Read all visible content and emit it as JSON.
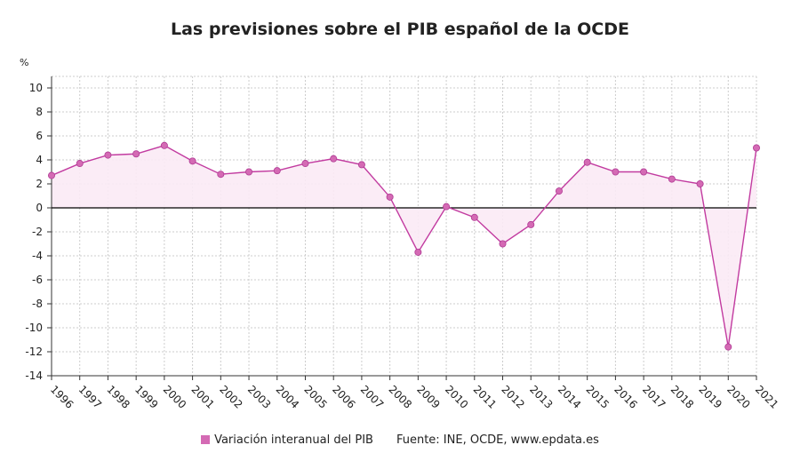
{
  "title": "Las previsiones sobre el PIB español de la OCDE",
  "legend": {
    "series_label": "Variación interanual del PIB",
    "source": "Fuente: INE, OCDE, www.epdata.es"
  },
  "colors": {
    "series": "#c23ba0",
    "marker": "#d46ab4",
    "fill": "#fbeaf5",
    "grid": "#cccccc",
    "zero_line": "#000000"
  },
  "chart_data": {
    "type": "line",
    "title": "Las previsiones sobre el PIB español de la OCDE",
    "xlabel": "",
    "ylabel": "%",
    "ylim": [
      -14,
      11
    ],
    "yticks": [
      10,
      8,
      6,
      4,
      2,
      0,
      -2,
      -4,
      -6,
      -8,
      -10,
      -12,
      -14
    ],
    "grid": true,
    "legend_position": "bottom",
    "x": [
      "1996",
      "1997",
      "1998",
      "1999",
      "2000",
      "2001",
      "2002",
      "2003",
      "2004",
      "2005",
      "2006",
      "2007",
      "2008",
      "2009",
      "2010",
      "2011",
      "2012",
      "2013",
      "2014",
      "2015",
      "2016",
      "2017",
      "2018",
      "2019",
      "2020",
      "2021"
    ],
    "series": [
      {
        "name": "Variación interanual del PIB",
        "values": [
          2.7,
          3.7,
          4.4,
          4.5,
          5.2,
          3.9,
          2.8,
          3.0,
          3.1,
          3.7,
          4.1,
          3.6,
          0.9,
          -3.7,
          0.1,
          -0.8,
          -3.0,
          -1.4,
          1.4,
          3.8,
          3.0,
          3.0,
          2.4,
          2.0,
          -11.6,
          5.0
        ]
      }
    ]
  }
}
